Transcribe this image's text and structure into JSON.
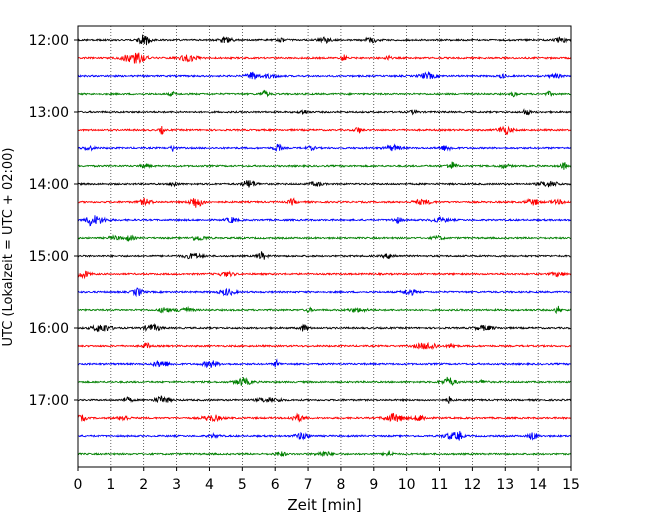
{
  "chart_data": {
    "type": "line",
    "title": "",
    "xlabel": "Zeit  [min]",
    "ylabel": "UTC (Lokalzeit = UTC + 02:00)",
    "xlim": [
      0,
      15
    ],
    "x_ticks": [
      0,
      1,
      2,
      3,
      4,
      5,
      6,
      7,
      8,
      9,
      10,
      11,
      12,
      13,
      14,
      15
    ],
    "x_grid": true,
    "y_ticks": [
      "12:00",
      "13:00",
      "14:00",
      "15:00",
      "16:00",
      "17:00"
    ],
    "trace_start": "12:00",
    "trace_interval_minutes": 15,
    "trace_count": 24,
    "trace_colors": [
      "#000000",
      "#ff0000",
      "#0000ff",
      "#008000"
    ],
    "series_note": "Seismogram helicorder: each row is a 15-minute trace of ground motion; waveform amplitudes are not labelled."
  }
}
